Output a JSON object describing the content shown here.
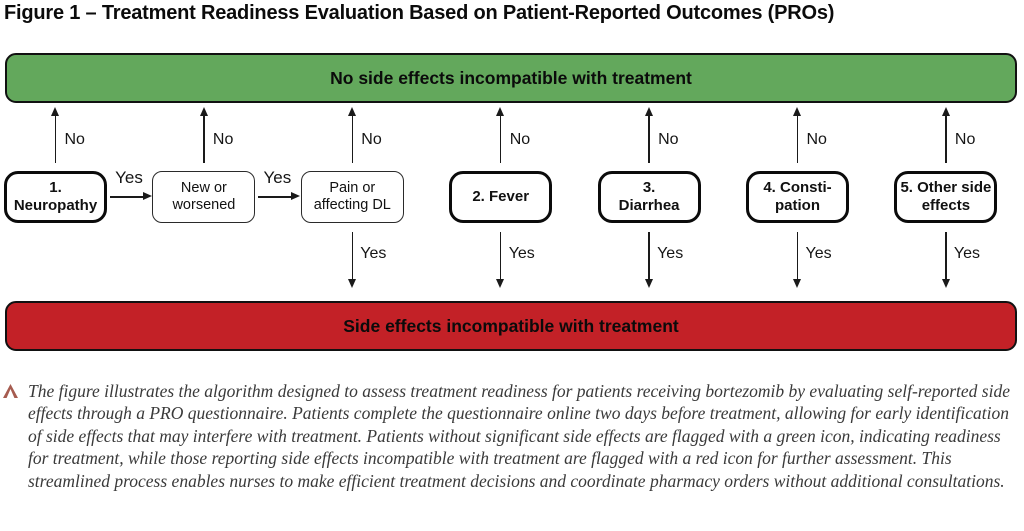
{
  "figure": {
    "title": "Figure 1 – Treatment Readiness Evaluation Based on Patient-Reported Outcomes (PROs)"
  },
  "outcome_bars": {
    "positive_label": "No side effects incompatible with treatment",
    "negative_label": "Side effects incompatible with treatment"
  },
  "decision_labels": {
    "yes": "Yes",
    "no": "No"
  },
  "flowchart": {
    "nodes": [
      {
        "id": "neuropathy",
        "label": "1. Neuropathy",
        "style": "primary",
        "no_up": true,
        "yes_down": false
      },
      {
        "id": "new-or-worsened",
        "label": "New or\nworsened",
        "style": "secondary",
        "no_up": true,
        "yes_down": false
      },
      {
        "id": "pain-affecting-dl",
        "label": "Pain or\naffecting DL",
        "style": "secondary",
        "no_up": true,
        "yes_down": true
      },
      {
        "id": "fever",
        "label": "2. Fever",
        "style": "primary",
        "no_up": true,
        "yes_down": true
      },
      {
        "id": "diarrhea",
        "label": "3.\nDiarrhea",
        "style": "primary",
        "no_up": true,
        "yes_down": true
      },
      {
        "id": "constipation",
        "label": "4. Consti-\npation",
        "style": "primary",
        "no_up": true,
        "yes_down": true
      },
      {
        "id": "other-side-effects",
        "label": "5. Other side\neffects",
        "style": "primary",
        "no_up": true,
        "yes_down": true
      }
    ],
    "yes_links": [
      {
        "from": "neuropathy",
        "to": "new-or-worsened",
        "label": "Yes"
      },
      {
        "from": "new-or-worsened",
        "to": "pain-affecting-dl",
        "label": "Yes"
      }
    ]
  },
  "colors": {
    "positive_bar": "#63a85c",
    "negative_bar": "#c32127",
    "caption_caret": "#a65c50"
  },
  "caption": {
    "text": "The figure illustrates the algorithm designed to assess treatment readiness for patients receiving bortezomib by evaluating self-reported side effects through a PRO questionnaire. Patients complete the questionnaire online two days before treatment, allowing for early identification of side effects that may interfere with treatment. Patients without significant side effects are flagged with a green icon, indicating readiness for treatment, while those reporting side effects incompatible with treatment are flagged with a red icon for further assessment. This streamlined process enables nurses to make efficient treatment decisions and coordinate pharmacy orders without additional consultations."
  }
}
